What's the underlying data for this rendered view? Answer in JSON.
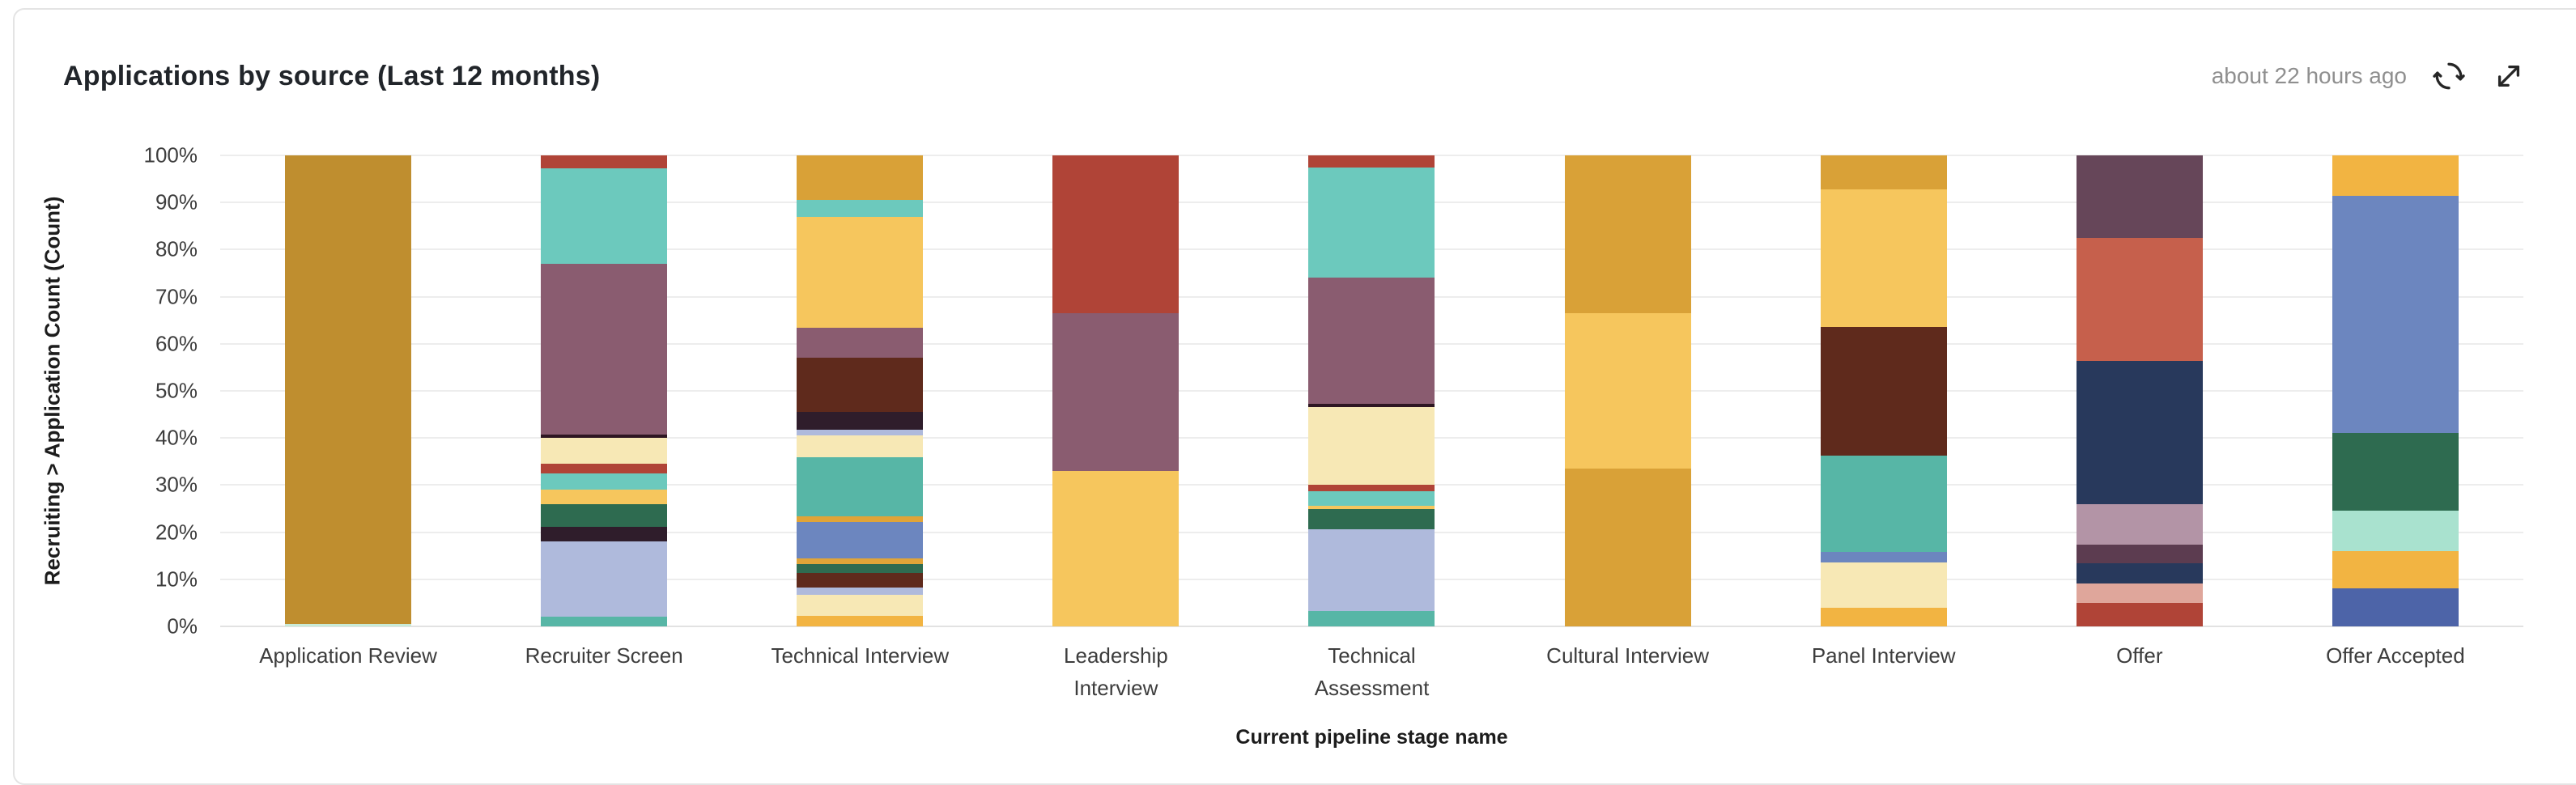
{
  "header": {
    "title": "Applications by source (Last 12 months)",
    "last_updated": "about 22 hours ago",
    "icons": [
      "refresh-icon",
      "expand-icon"
    ]
  },
  "chart_data": {
    "type": "bar",
    "stacked": true,
    "normalized_percent": true,
    "title": "Applications by source (Last 12 months)",
    "xlabel": "Current pipeline stage name",
    "ylabel": "Recruiting > Application Count (Count)",
    "ylim": [
      0,
      100
    ],
    "grid": "horizontal",
    "legend": "none",
    "y_ticks": [
      "100%",
      "90%",
      "80%",
      "70%",
      "60%",
      "50%",
      "40%",
      "30%",
      "20%",
      "10%",
      "0%"
    ],
    "categories": [
      "Application Review",
      "Recruiter Screen",
      "Technical Interview",
      "Leadership\nInterview",
      "Technical\nAssessment",
      "Cultural Interview",
      "Panel Interview",
      "Offer",
      "Offer Accepted"
    ],
    "bars": [
      {
        "category": "Application Review",
        "segments": [
          {
            "color": "#C9EBD8",
            "value": 0.5
          },
          {
            "color": "#BF8E2F",
            "value": 99.5
          }
        ]
      },
      {
        "category": "Recruiter Screen",
        "segments": [
          {
            "color": "#57B6A6",
            "value": 2
          },
          {
            "color": "#AFBADC",
            "value": 16.1
          },
          {
            "color": "#2F1D2B",
            "value": 3.1
          },
          {
            "color": "#2E6B50",
            "value": 4.7
          },
          {
            "color": "#F6C65D",
            "value": 3.2
          },
          {
            "color": "#6CC9BD",
            "value": 3.4
          },
          {
            "color": "#B04437",
            "value": 2.1
          },
          {
            "color": "#F7E8B5",
            "value": 5.4
          },
          {
            "color": "#2E1622",
            "value": 0.8
          },
          {
            "color": "#8A5C70",
            "value": 36.2
          },
          {
            "color": "#6CC9BD",
            "value": 20.3
          },
          {
            "color": "#B04437",
            "value": 2.7
          }
        ]
      },
      {
        "category": "Technical Interview",
        "segments": [
          {
            "color": "#F2B442",
            "value": 2.2
          },
          {
            "color": "#F7E8B5",
            "value": 4.5
          },
          {
            "color": "#AFBADC",
            "value": 1.5
          },
          {
            "color": "#5F2A1C",
            "value": 3.1
          },
          {
            "color": "#2E6B50",
            "value": 2.0
          },
          {
            "color": "#E0A438",
            "value": 1.1
          },
          {
            "color": "#6C86BF",
            "value": 7.7
          },
          {
            "color": "#E0A438",
            "value": 1.2
          },
          {
            "color": "#57B6A6",
            "value": 12.7
          },
          {
            "color": "#F7E8B5",
            "value": 4.5
          },
          {
            "color": "#AFBADC",
            "value": 1.3
          },
          {
            "color": "#2F1D2B",
            "value": 3.7
          },
          {
            "color": "#5F2A1C",
            "value": 11.5
          },
          {
            "color": "#8A5C70",
            "value": 6.5
          },
          {
            "color": "#F6C65D",
            "value": 23.5
          },
          {
            "color": "#6CC9BD",
            "value": 3.5
          },
          {
            "color": "#D9A137",
            "value": 9.5
          }
        ]
      },
      {
        "category": "Leadership\nInterview",
        "segments": [
          {
            "color": "#F6C65D",
            "value": 33
          },
          {
            "color": "#8A5C70",
            "value": 33.5
          },
          {
            "color": "#B04437",
            "value": 33.5
          }
        ]
      },
      {
        "category": "Technical\nAssessment",
        "segments": [
          {
            "color": "#57B6A6",
            "value": 3.3
          },
          {
            "color": "#AFBADC",
            "value": 17.3
          },
          {
            "color": "#2E6B50",
            "value": 4.4
          },
          {
            "color": "#F6C65D",
            "value": 0.6
          },
          {
            "color": "#6CC9BD",
            "value": 3.1
          },
          {
            "color": "#B04437",
            "value": 1.3
          },
          {
            "color": "#F7E8B5",
            "value": 16.5
          },
          {
            "color": "#2E1622",
            "value": 0.8
          },
          {
            "color": "#8A5C70",
            "value": 26.7
          },
          {
            "color": "#6CC9BD",
            "value": 23.4
          },
          {
            "color": "#B04437",
            "value": 2.6
          }
        ]
      },
      {
        "category": "Cultural Interview",
        "segments": [
          {
            "color": "#D9A137",
            "value": 33.5
          },
          {
            "color": "#F6C65D",
            "value": 33
          },
          {
            "color": "#D9A137",
            "value": 33.5
          }
        ]
      },
      {
        "category": "Panel Interview",
        "segments": [
          {
            "color": "#F2B442",
            "value": 4
          },
          {
            "color": "#F7E8B5",
            "value": 9.5
          },
          {
            "color": "#6C86BF",
            "value": 2.4
          },
          {
            "color": "#57B6A6",
            "value": 20.4
          },
          {
            "color": "#5F2A1C",
            "value": 27.3
          },
          {
            "color": "#F6C65D",
            "value": 29.2
          },
          {
            "color": "#D9A137",
            "value": 7.2
          }
        ]
      },
      {
        "category": "Offer",
        "segments": [
          {
            "color": "#B04437",
            "value": 4.9
          },
          {
            "color": "#DFA69B",
            "value": 4.2
          },
          {
            "color": "#28395C",
            "value": 4.3
          },
          {
            "color": "#5C3C50",
            "value": 4.0
          },
          {
            "color": "#B394A6",
            "value": 8.6
          },
          {
            "color": "#28395C",
            "value": 30.3
          },
          {
            "color": "#C6604C",
            "value": 26.1
          },
          {
            "color": "#664659",
            "value": 17.6
          }
        ]
      },
      {
        "category": "Offer Accepted",
        "segments": [
          {
            "color": "#4D64A8",
            "value": 8
          },
          {
            "color": "#F2B442",
            "value": 8
          },
          {
            "color": "#A9E2CF",
            "value": 8.5
          },
          {
            "color": "#2E6B50",
            "value": 16.5
          },
          {
            "color": "#6C86BF",
            "value": 50.5
          },
          {
            "color": "#F2B442",
            "value": 8.5
          }
        ]
      }
    ]
  }
}
